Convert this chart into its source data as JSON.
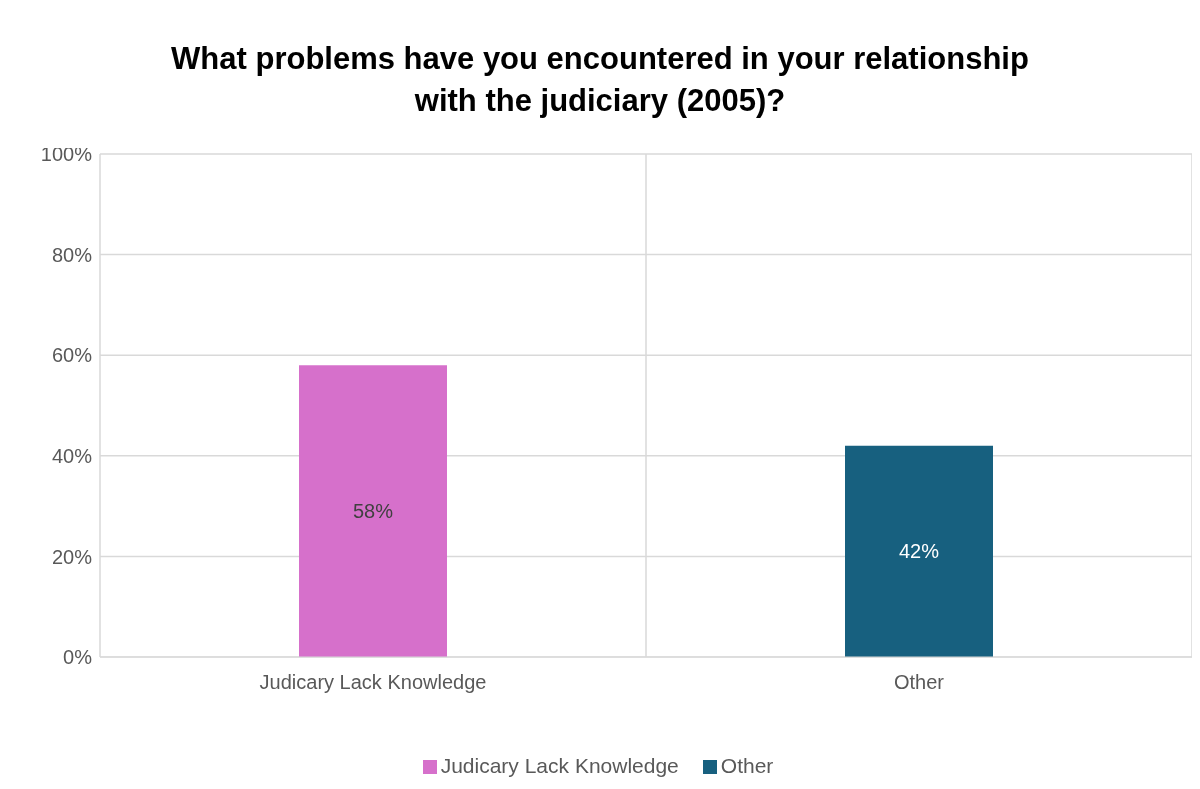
{
  "chart_data": {
    "type": "bar",
    "title": "What problems have you encountered in your relationship with the judiciary (2005)?",
    "categories": [
      "Judicary Lack Knowledge",
      "Other"
    ],
    "series": [
      {
        "name": "Judicary Lack Knowledge",
        "color": "#d670cb",
        "values": [
          58,
          null
        ],
        "value_labels": [
          "58%",
          null
        ]
      },
      {
        "name": "Other",
        "color": "#17607f",
        "values": [
          null,
          42
        ],
        "value_labels": [
          null,
          "42%"
        ]
      }
    ],
    "ylim": [
      0,
      100
    ],
    "yticks": [
      {
        "value": 0,
        "label": "0%"
      },
      {
        "value": 20,
        "label": "20%"
      },
      {
        "value": 40,
        "label": "40%"
      },
      {
        "value": 60,
        "label": "60%"
      },
      {
        "value": 80,
        "label": "80%"
      },
      {
        "value": 100,
        "label": "100%"
      }
    ],
    "grid": true,
    "legend": "bottom"
  }
}
